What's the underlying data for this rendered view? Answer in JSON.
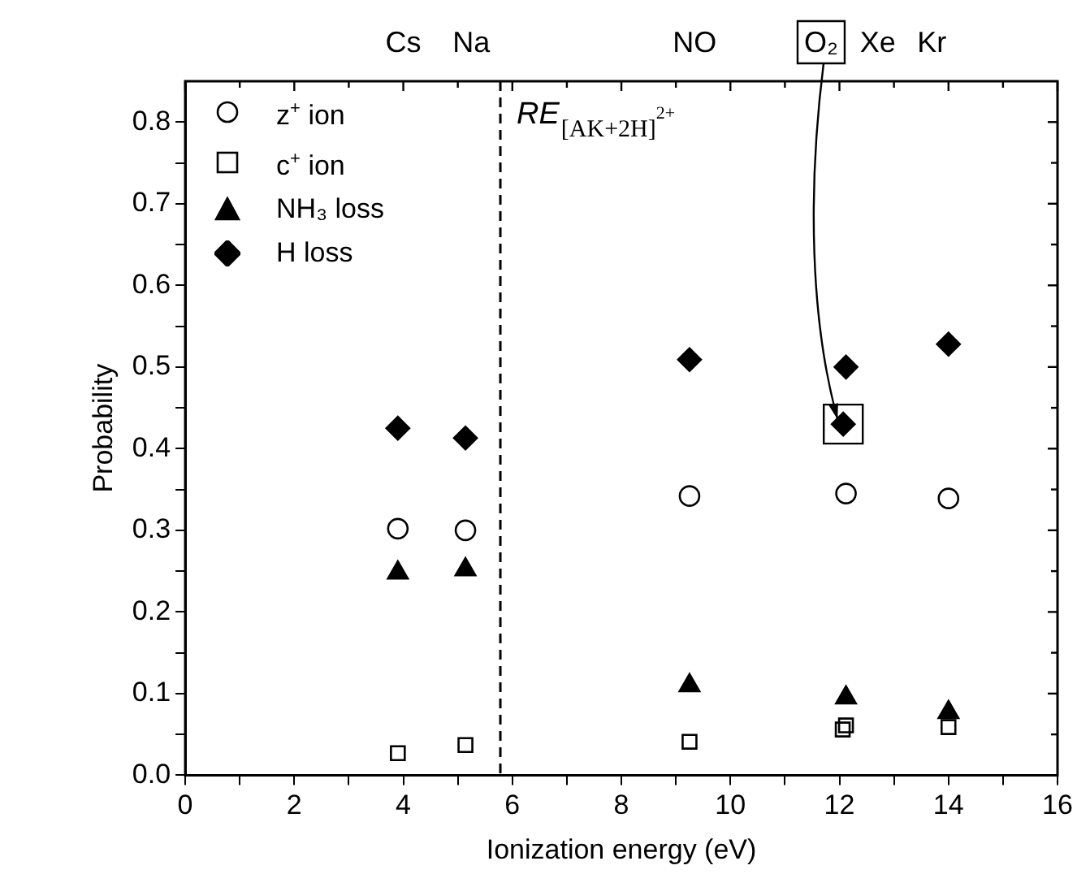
{
  "chart_data": {
    "type": "scatter",
    "xlabel": "Ionization energy (eV)",
    "ylabel": "Probability",
    "xlim": [
      0,
      16
    ],
    "ylim": [
      0,
      0.85
    ],
    "xticks": [
      0,
      {
        "value": 1,
        "label": null
      },
      2,
      {
        "value": 3,
        "label": null
      },
      4,
      {
        "value": 5,
        "label": null
      },
      6,
      {
        "value": 7,
        "label": null
      },
      8,
      {
        "value": 9,
        "label": null
      },
      10,
      {
        "value": 11,
        "label": null
      },
      12,
      {
        "value": 13,
        "label": null
      },
      14,
      {
        "value": 15,
        "label": null
      },
      16
    ],
    "yticks": [
      {
        "value": 0,
        "label": "0.0"
      },
      {
        "value": 0.05,
        "label": null
      },
      {
        "value": 0.1,
        "label": "0.1"
      },
      {
        "value": 0.15,
        "label": null
      },
      {
        "value": 0.2,
        "label": "0.2"
      },
      {
        "value": 0.25,
        "label": null
      },
      {
        "value": 0.3,
        "label": "0.3"
      },
      {
        "value": 0.35,
        "label": null
      },
      {
        "value": 0.4,
        "label": "0.4"
      },
      {
        "value": 0.45,
        "label": null
      },
      {
        "value": 0.5,
        "label": "0.5"
      },
      {
        "value": 0.55,
        "label": null
      },
      {
        "value": 0.6,
        "label": "0.6"
      },
      {
        "value": 0.65,
        "label": null
      },
      {
        "value": 0.7,
        "label": "0.7"
      },
      {
        "value": 0.75,
        "label": null
      },
      {
        "value": 0.8,
        "label": "0.8"
      }
    ],
    "grid": false,
    "legend": "top left",
    "series": [
      {
        "name": "z$^{+}$ ion",
        "color": "#000000",
        "marker": "circle",
        "x": [
          3.9,
          5.14,
          9.25,
          12.12,
          14.0
        ],
        "values": [
          0.302,
          0.3,
          0.342,
          0.345,
          0.339
        ]
      },
      {
        "name": "c$^{+}$ ion",
        "color": "#000000",
        "marker": "square",
        "x": [
          3.9,
          5.14,
          9.25,
          12.06,
          12.12,
          14.0
        ],
        "values": [
          0.027,
          0.037,
          0.041,
          0.056,
          0.061,
          0.059
        ]
      },
      {
        "name": "NH₃ loss",
        "color": "#000000",
        "marker": "triangle",
        "x": [
          3.9,
          5.14,
          9.25,
          12.12,
          14.0
        ],
        "values": [
          0.248,
          0.252,
          0.11,
          0.095,
          0.077
        ]
      },
      {
        "name": "H loss",
        "color": "#000000",
        "marker": "diamond",
        "x": [
          3.9,
          5.14,
          9.25,
          12.07,
          12.12,
          14.0
        ],
        "values": [
          0.425,
          0.413,
          0.509,
          0.43,
          0.5,
          0.528
        ]
      }
    ],
    "ref_lines": [
      {
        "axis": "x",
        "value": 5.78,
        "label": "RE$_{[AK+2H]}$$^{2+}$",
        "line_style": "dashed",
        "color": "#000000"
      }
    ],
    "annotations": [
      "Cs",
      "Na",
      "NO",
      {
        "text": "O₂",
        "x": 12.07,
        "y": 0.43
      },
      "Xe",
      "Kr"
    ]
  }
}
